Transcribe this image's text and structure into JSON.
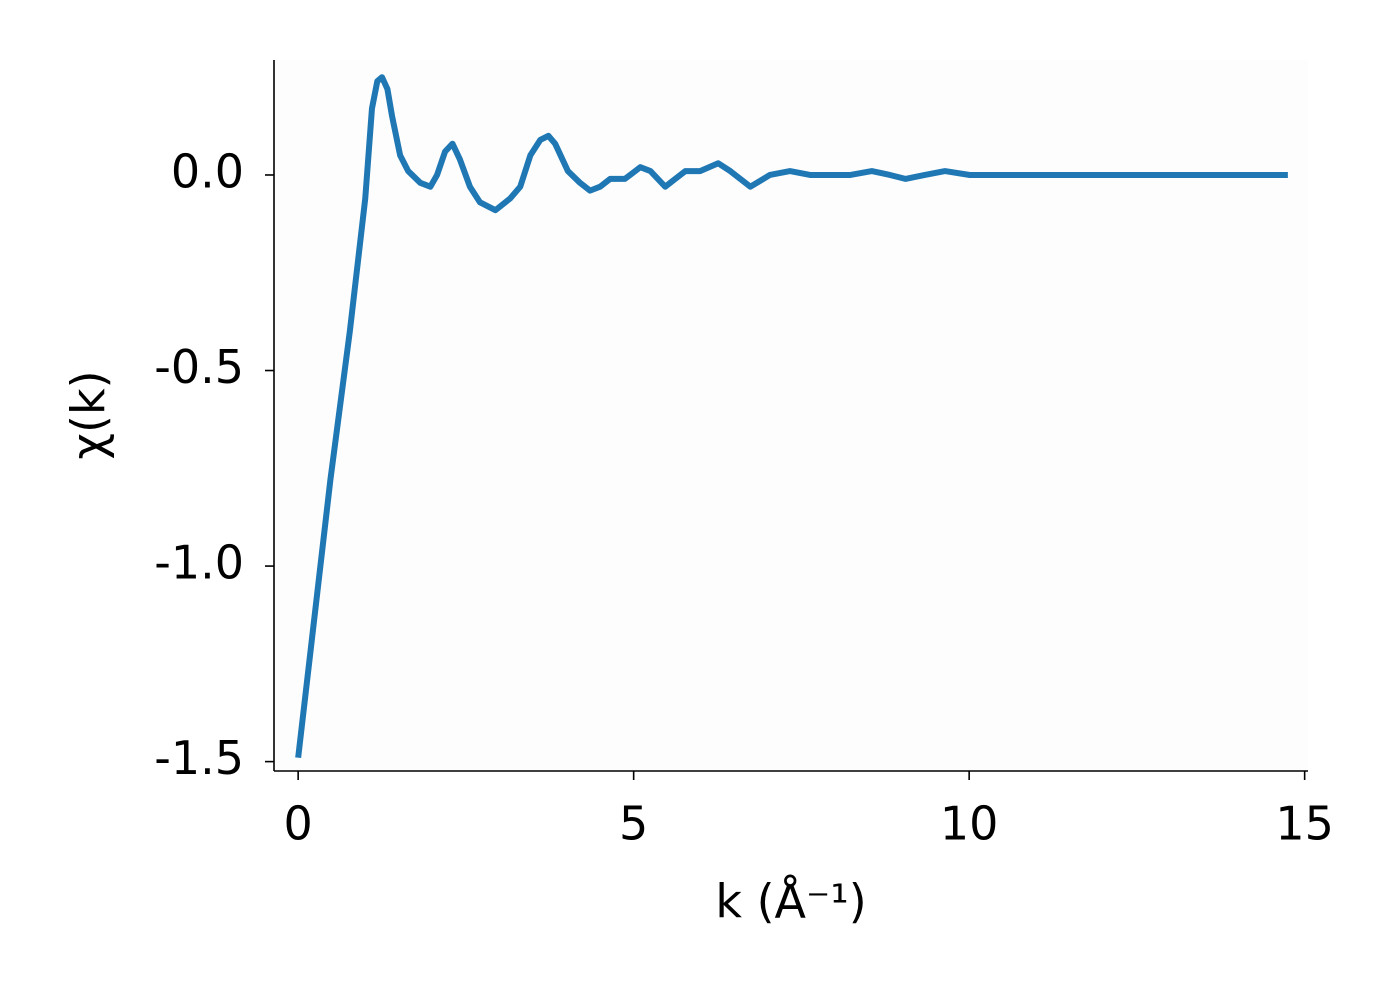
{
  "chart_data": {
    "type": "line",
    "x_label": "k (Å⁻¹)",
    "y_label": "χ(k)",
    "x": [
      0,
      0.48,
      0.77,
      1.0,
      1.1,
      1.18,
      1.25,
      1.33,
      1.4,
      1.52,
      1.64,
      1.82,
      1.97,
      2.07,
      2.19,
      2.3,
      2.41,
      2.56,
      2.71,
      2.94,
      3.16,
      3.31,
      3.46,
      3.61,
      3.73,
      3.83,
      4.02,
      4.2,
      4.35,
      4.5,
      4.65,
      4.87,
      5.1,
      5.25,
      5.47,
      5.62,
      5.77,
      5.99,
      6.26,
      6.44,
      6.74,
      7.03,
      7.33,
      7.63,
      7.93,
      8.23,
      8.55,
      8.82,
      9.05,
      9.34,
      9.64,
      10.01,
      10.46,
      11.95,
      13.44,
      14.75
    ],
    "series": [
      {
        "color": "#1f77b4",
        "values": [
          -1.49,
          -0.78,
          -0.4,
          -0.06,
          0.17,
          0.24,
          0.25,
          0.22,
          0.15,
          0.05,
          0.01,
          -0.02,
          -0.03,
          0.0,
          0.06,
          0.08,
          0.04,
          -0.03,
          -0.07,
          -0.09,
          -0.06,
          -0.03,
          0.05,
          0.09,
          0.1,
          0.08,
          0.01,
          -0.02,
          -0.04,
          -0.03,
          -0.01,
          -0.01,
          0.02,
          0.01,
          -0.03,
          -0.01,
          0.01,
          0.01,
          0.03,
          0.01,
          -0.03,
          0.0,
          0.01,
          0.0,
          0.0,
          0.0,
          0.01,
          0.0,
          -0.01,
          0.0,
          0.01,
          0.0,
          0,
          0,
          0,
          0
        ]
      }
    ],
    "xlim": [
      -0.36,
      15.05
    ],
    "ylim": [
      -1.524,
      0.294
    ],
    "xticks": [
      0,
      5,
      10,
      15
    ],
    "yticks": [
      {
        "value": -1.5,
        "label": "-1.5"
      },
      {
        "value": -1.0,
        "label": "-1.0"
      },
      {
        "value": -0.5,
        "label": "-0.5"
      },
      {
        "value": 0,
        "label": "0.0"
      }
    ]
  }
}
